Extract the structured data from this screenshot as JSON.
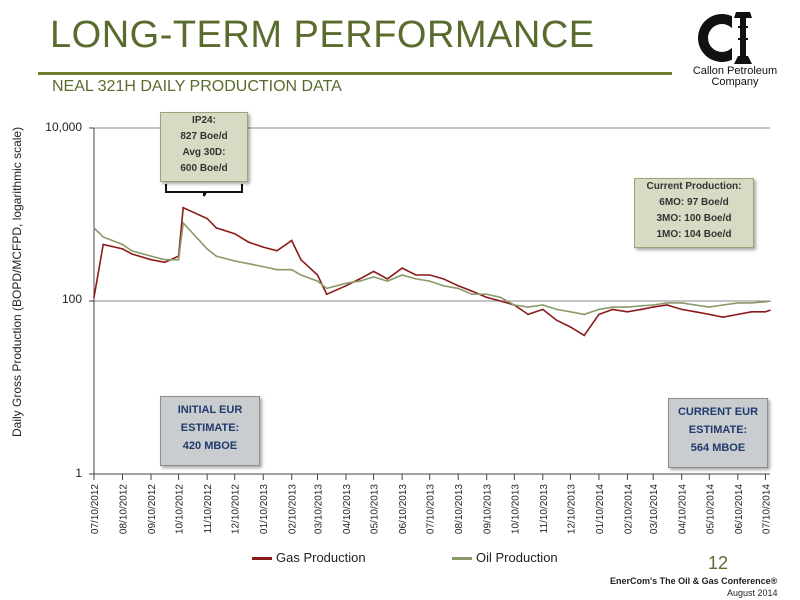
{
  "slide": {
    "title": "LONG-TERM PERFORMANCE",
    "subtitle": "NEAL 321H DAILY PRODUCTION DATA",
    "page_number": "12",
    "footer_line1": "EnerCom's The Oil & Gas Conference®",
    "footer_line2": "August 2014",
    "logo_text_line1": "Callon Petroleum",
    "logo_text_line2": "Company",
    "accent_color": "#5a6b2e"
  },
  "annotations": {
    "ip_box": [
      "IP24:",
      "827 Boe/d",
      "Avg 30D:",
      "600 Boe/d"
    ],
    "current_box": [
      "Current Production:",
      "6MO: 97 Boe/d",
      "3MO: 100 Boe/d",
      "1MO: 104 Boe/d"
    ],
    "initial_eur_box": [
      "INITIAL EUR",
      "ESTIMATE:",
      "420 MBOE"
    ],
    "current_eur_box": [
      "CURRENT EUR",
      "ESTIMATE:",
      "564 MBOE"
    ]
  },
  "chart_data": {
    "type": "line",
    "ylabel": "Daily Gross Production (BOPD/MCFPD, logarithmic scale)",
    "xlabel": "",
    "yscale": "log",
    "ylim": [
      1,
      10000
    ],
    "y_ticks": [
      "1",
      "100",
      "10,000"
    ],
    "x_ticks": [
      "07/10/2012",
      "08/10/2012",
      "09/10/2012",
      "10/10/2012",
      "11/10/2012",
      "12/10/2012",
      "01/10/2013",
      "02/10/2013",
      "03/10/2013",
      "04/10/2013",
      "05/10/2013",
      "06/10/2013",
      "07/10/2013",
      "08/10/2013",
      "09/10/2013",
      "10/10/2013",
      "11/10/2013",
      "12/10/2013",
      "01/10/2014",
      "02/10/2014",
      "03/10/2014",
      "04/10/2014",
      "05/10/2014",
      "06/10/2014",
      "07/10/2014"
    ],
    "grid": false,
    "legend_position": "bottom",
    "series": [
      {
        "name": "Gas Production",
        "color": "#8b1a1a",
        "x": [
          "07/10/2012",
          "07/20/2012",
          "08/10/2012",
          "08/20/2012",
          "09/10/2012",
          "09/25/2012",
          "10/10/2012",
          "10/15/2012",
          "11/10/2012",
          "11/20/2012",
          "12/10/2012",
          "12/25/2012",
          "01/10/2013",
          "01/25/2013",
          "02/10/2013",
          "02/20/2013",
          "03/10/2013",
          "03/20/2013",
          "04/10/2013",
          "04/25/2013",
          "05/10/2013",
          "05/25/2013",
          "06/10/2013",
          "06/25/2013",
          "07/10/2013",
          "07/25/2013",
          "08/10/2013",
          "08/25/2013",
          "09/10/2013",
          "09/25/2013",
          "10/10/2013",
          "10/25/2013",
          "11/10/2013",
          "11/25/2013",
          "12/10/2013",
          "12/25/2013",
          "01/10/2014",
          "01/25/2014",
          "02/10/2014",
          "02/25/2014",
          "03/10/2014",
          "03/25/2014",
          "04/10/2014",
          "04/25/2014",
          "05/10/2014",
          "05/25/2014",
          "06/10/2014",
          "06/25/2014",
          "07/10/2014",
          "07/15/2014"
        ],
        "values": [
          110,
          450,
          400,
          350,
          300,
          280,
          330,
          1200,
          900,
          700,
          600,
          480,
          420,
          380,
          500,
          300,
          200,
          120,
          150,
          180,
          220,
          180,
          240,
          200,
          200,
          180,
          150,
          130,
          110,
          100,
          90,
          70,
          80,
          60,
          50,
          40,
          70,
          80,
          75,
          80,
          85,
          90,
          80,
          75,
          70,
          65,
          70,
          75,
          75,
          78
        ]
      },
      {
        "name": "Oil Production",
        "color": "#8a9a6a",
        "x": [
          "07/10/2012",
          "07/20/2012",
          "08/10/2012",
          "08/20/2012",
          "09/10/2012",
          "09/25/2012",
          "10/10/2012",
          "10/15/2012",
          "11/10/2012",
          "11/20/2012",
          "12/10/2012",
          "12/25/2012",
          "01/10/2013",
          "01/25/2013",
          "02/10/2013",
          "02/20/2013",
          "03/10/2013",
          "03/20/2013",
          "04/10/2013",
          "04/25/2013",
          "05/10/2013",
          "05/25/2013",
          "06/10/2013",
          "06/25/2013",
          "07/10/2013",
          "07/25/2013",
          "08/10/2013",
          "08/25/2013",
          "09/10/2013",
          "09/25/2013",
          "10/10/2013",
          "10/25/2013",
          "11/10/2013",
          "11/25/2013",
          "12/10/2013",
          "12/25/2013",
          "01/10/2014",
          "01/25/2014",
          "02/10/2014",
          "02/25/2014",
          "03/10/2014",
          "03/25/2014",
          "04/10/2014",
          "04/25/2014",
          "05/10/2014",
          "05/25/2014",
          "06/10/2014",
          "06/25/2014",
          "07/10/2014",
          "07/15/2014"
        ],
        "values": [
          700,
          550,
          450,
          380,
          330,
          300,
          300,
          800,
          400,
          330,
          290,
          270,
          250,
          230,
          230,
          200,
          170,
          140,
          160,
          170,
          190,
          170,
          200,
          180,
          170,
          150,
          140,
          120,
          120,
          110,
          90,
          85,
          90,
          80,
          75,
          70,
          80,
          85,
          85,
          88,
          90,
          95,
          95,
          90,
          85,
          90,
          95,
          95,
          98,
          100
        ]
      }
    ]
  }
}
